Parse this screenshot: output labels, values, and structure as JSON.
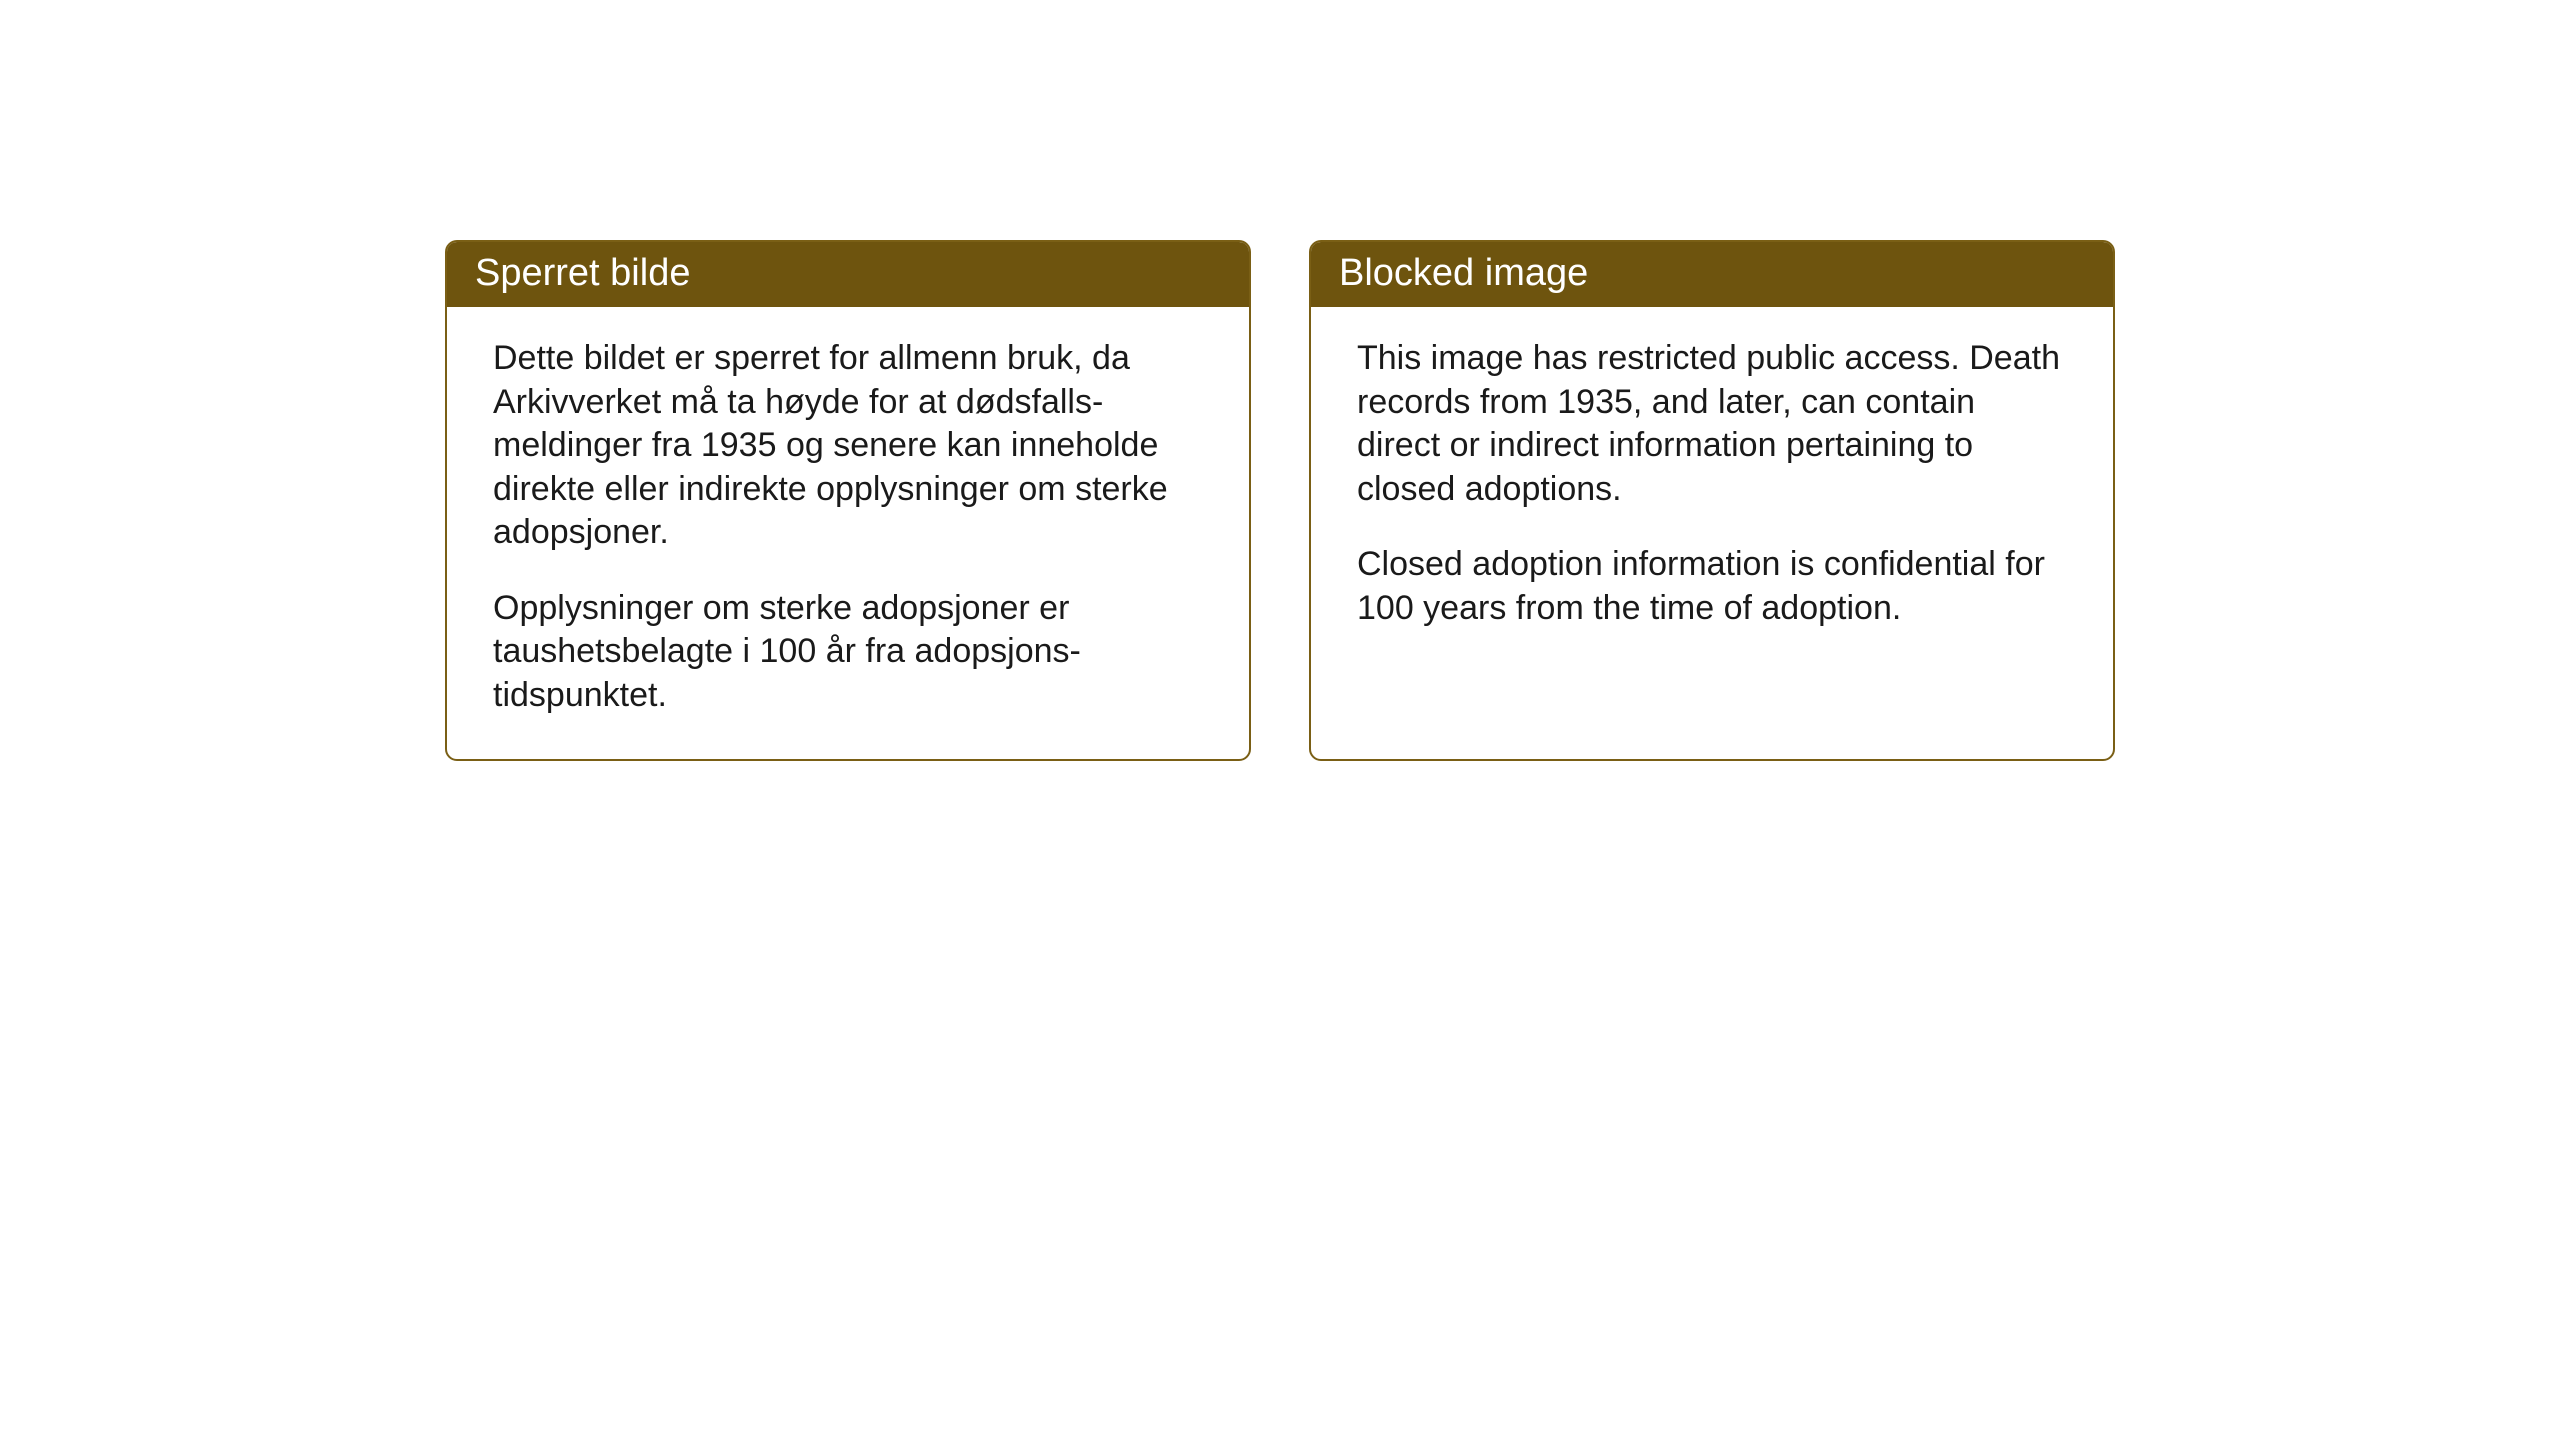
{
  "page": {
    "background_color": "#ffffff"
  },
  "panels": {
    "left": {
      "title": "Sperret bilde",
      "paragraph1": "Dette bildet er sperret for allmenn bruk, da Arkivverket må ta høyde for at dødsfalls-meldinger fra 1935 og senere kan inneholde direkte eller indirekte opplysninger om sterke adopsjoner.",
      "paragraph2": "Opplysninger om sterke adopsjoner er taushetsbelagte i 100 år fra adopsjons-tidspunktet."
    },
    "right": {
      "title": "Blocked image",
      "paragraph1": "This image has restricted public access. Death records from 1935, and later, can contain direct or indirect information pertaining to closed adoptions.",
      "paragraph2": "Closed adoption information is confidential for 100 years from the time of adoption."
    }
  },
  "style": {
    "header_bg": "#6e540e",
    "header_text_color": "#ffffff",
    "border_color": "#7a5f15",
    "body_text_color": "#1a1a1a",
    "title_fontsize": 38,
    "body_fontsize": 34,
    "border_radius": 12,
    "border_width": 2
  }
}
